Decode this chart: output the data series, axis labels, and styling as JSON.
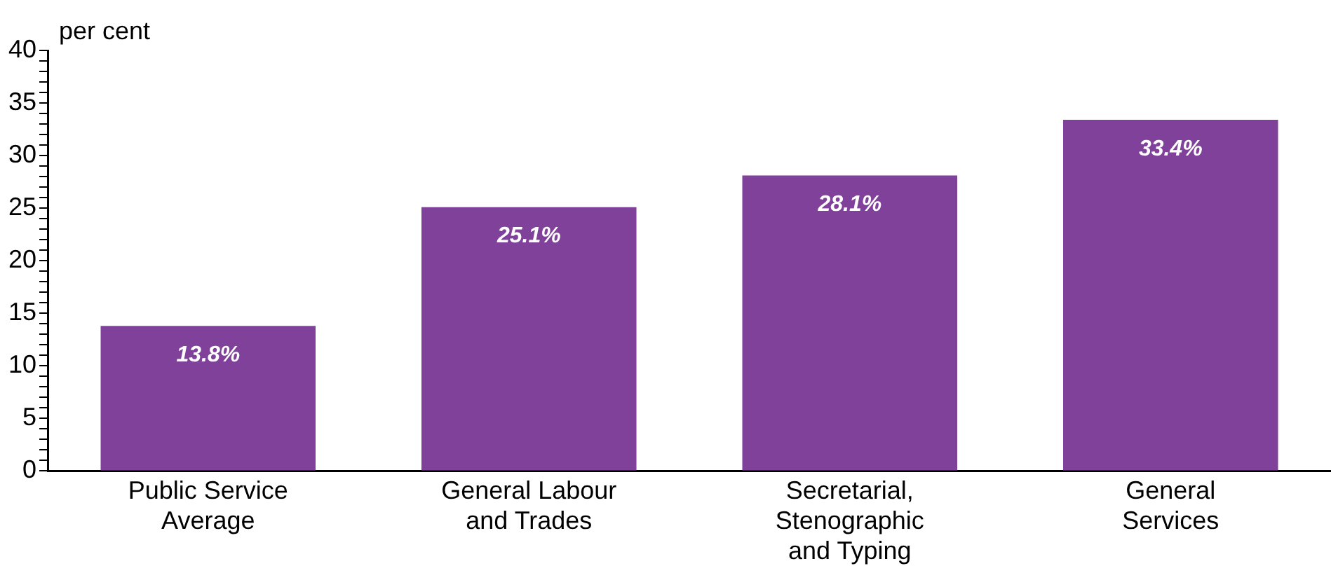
{
  "chart_data": {
    "type": "bar",
    "ylabel": "per cent",
    "categories": [
      "Public Service Average",
      "General Labour and Trades",
      "Secretarial, Stenographic and Typing",
      "General Services"
    ],
    "values": [
      13.8,
      25.1,
      28.1,
      33.4
    ],
    "value_labels": [
      "13.8%",
      "25.1%",
      "28.1%",
      "33.4%"
    ],
    "color": "#7f4199",
    "ylim": [
      0,
      40
    ],
    "yticks": [
      0,
      {
        "value": 1,
        "label": null
      },
      {
        "value": 2,
        "label": null
      },
      {
        "value": 3,
        "label": null
      },
      {
        "value": 4,
        "label": null
      },
      5,
      {
        "value": 6,
        "label": null
      },
      {
        "value": 7,
        "label": null
      },
      {
        "value": 8,
        "label": null
      },
      {
        "value": 9,
        "label": null
      },
      10,
      {
        "value": 11,
        "label": null
      },
      {
        "value": 12,
        "label": null
      },
      {
        "value": 13,
        "label": null
      },
      {
        "value": 14,
        "label": null
      },
      15,
      {
        "value": 16,
        "label": null
      },
      {
        "value": 17,
        "label": null
      },
      {
        "value": 18,
        "label": null
      },
      {
        "value": 19,
        "label": null
      },
      20,
      {
        "value": 21,
        "label": null
      },
      {
        "value": 22,
        "label": null
      },
      {
        "value": 23,
        "label": null
      },
      {
        "value": 24,
        "label": null
      },
      25,
      {
        "value": 26,
        "label": null
      },
      {
        "value": 27,
        "label": null
      },
      {
        "value": 28,
        "label": null
      },
      {
        "value": 29,
        "label": null
      },
      30,
      {
        "value": 31,
        "label": null
      },
      {
        "value": 32,
        "label": null
      },
      {
        "value": 33,
        "label": null
      },
      {
        "value": 34,
        "label": null
      },
      35,
      {
        "value": 36,
        "label": null
      },
      {
        "value": 37,
        "label": null
      },
      {
        "value": 38,
        "label": null
      },
      {
        "value": 39,
        "label": null
      },
      40
    ],
    "grid": false,
    "legend": false
  }
}
